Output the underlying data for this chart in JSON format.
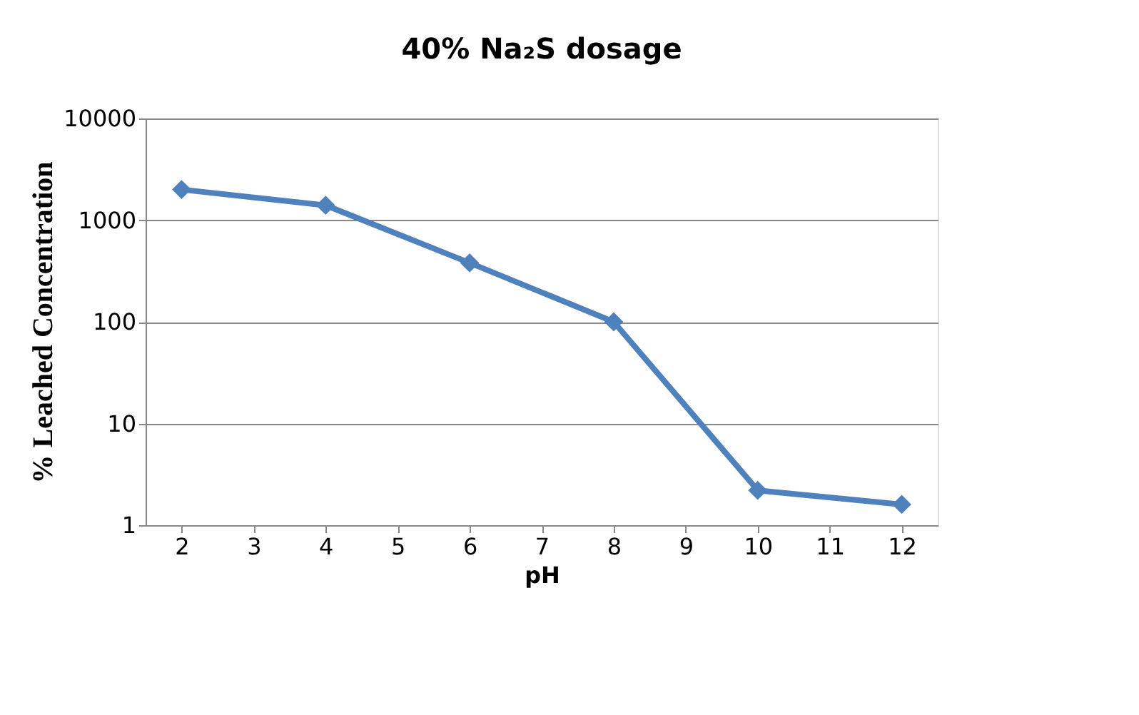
{
  "chart_data": {
    "type": "line",
    "title": "40% Na₂S dosage",
    "xlabel": "pH",
    "ylabel": "% Leached Concentration",
    "x": [
      2,
      4,
      6,
      8,
      10,
      12
    ],
    "series": [
      {
        "color": "#4f81bd",
        "values": [
          2000,
          1400,
          380,
          100,
          2.2,
          1.6
        ]
      }
    ],
    "xlim": [
      1.5,
      12.5
    ],
    "xticks": [
      2,
      3,
      4,
      5,
      6,
      7,
      8,
      9,
      10,
      11,
      12
    ],
    "ylim": [
      1,
      10000
    ],
    "yticks": [
      1,
      10,
      100,
      1000,
      10000
    ],
    "log": true,
    "grid": "y",
    "marker": "diamond"
  }
}
